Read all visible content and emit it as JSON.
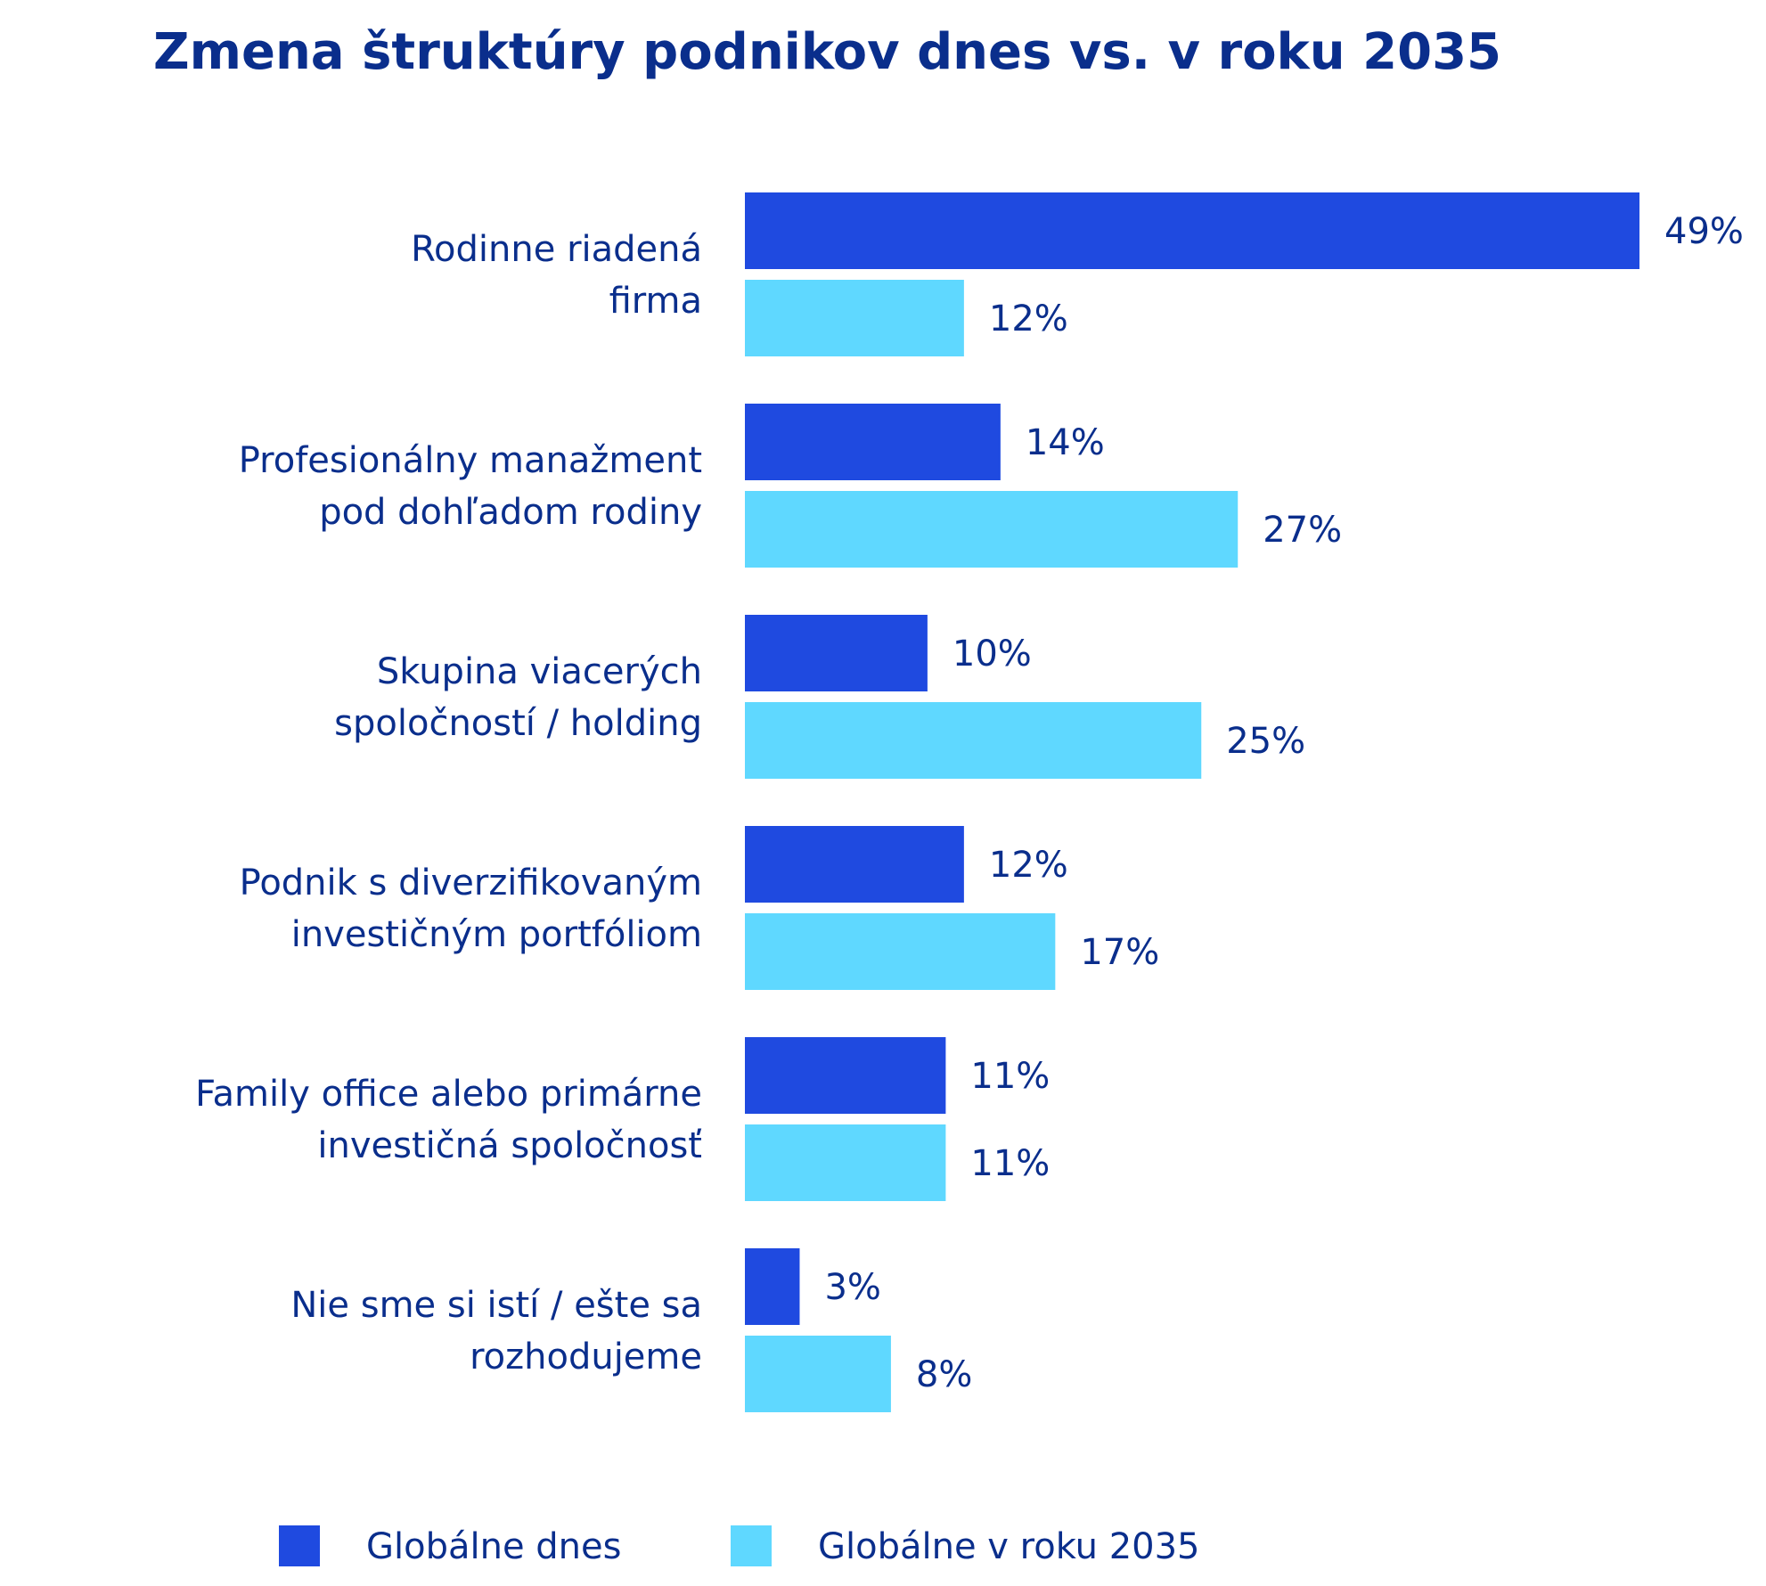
{
  "chart_data": {
    "type": "bar",
    "orientation": "horizontal",
    "title": "Zmena štruktúry podnikov dnes vs. v roku 2035",
    "categories": [
      [
        "Rodinne riadená",
        "firma"
      ],
      [
        "Profesionálny manažment",
        "pod dohľadom rodiny"
      ],
      [
        "Skupina viacerých",
        "spoločností / holding"
      ],
      [
        "Podnik s diverzifikovaným",
        "investičným portfóliom"
      ],
      [
        "Family office alebo primárne",
        "investičná spoločnosť"
      ],
      [
        "Nie sme si istí / ešte sa",
        "rozhodujeme"
      ]
    ],
    "series": [
      {
        "name": "Globálne dnes",
        "color": "#1F4AE0",
        "values": [
          49,
          14,
          10,
          12,
          11,
          3
        ],
        "labels": [
          "49%",
          "14%",
          "10%",
          "12%",
          "11%",
          "3%"
        ]
      },
      {
        "name": "Globálne v roku 2035",
        "color": "#5FD8FF",
        "values": [
          12,
          27,
          25,
          17,
          11,
          8
        ],
        "labels": [
          "12%",
          "27%",
          "25%",
          "17%",
          "11%",
          "8%"
        ]
      }
    ],
    "xlim": [
      0,
      49
    ],
    "grid": false,
    "legend": "bottom"
  }
}
